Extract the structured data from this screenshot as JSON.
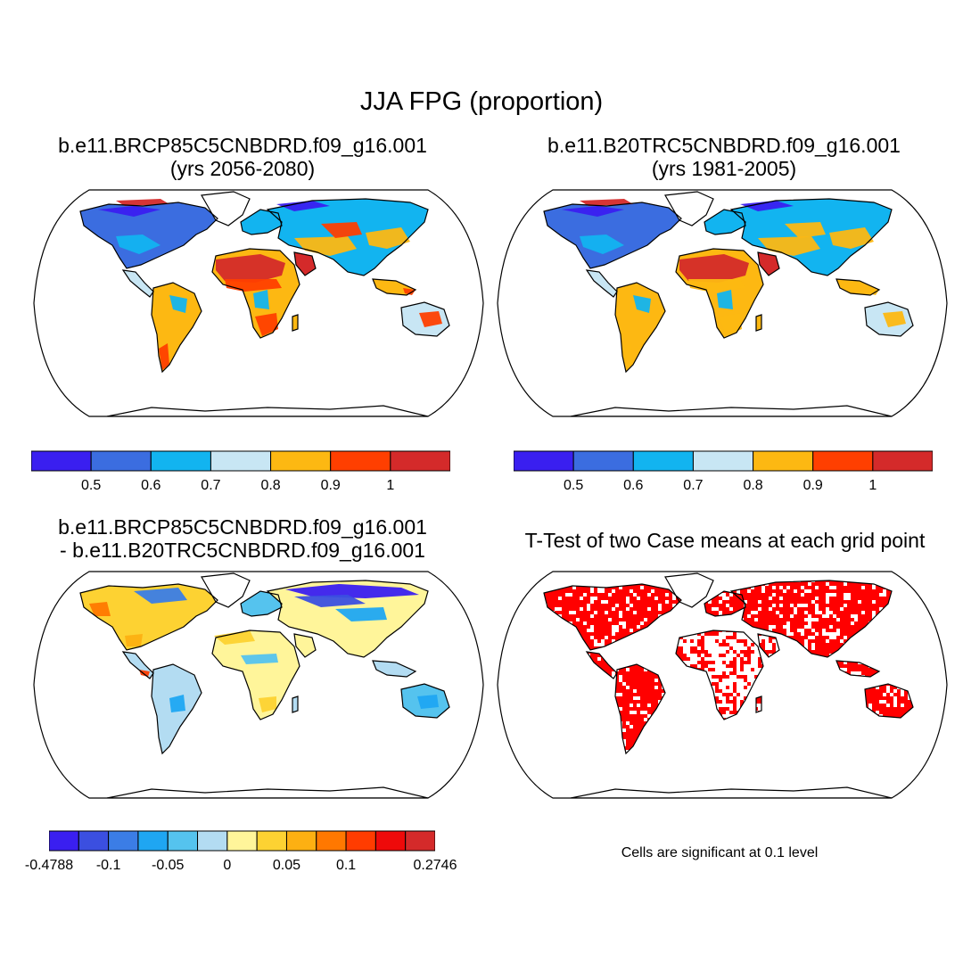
{
  "figure": {
    "title": "JJA FPG (proportion)"
  },
  "panels": [
    {
      "id": "future",
      "title_line1": "b.e11.BRCP85C5CNBDRD.f09_g16.001",
      "title_line2": "(yrs 2056-2080)"
    },
    {
      "id": "historical",
      "title_line1": "b.e11.B20TRC5CNBDRD.f09_g16.001",
      "title_line2": "(yrs 1981-2005)"
    },
    {
      "id": "difference",
      "title_line1": "b.e11.BRCP85C5CNBDRD.f09_g16.001",
      "title_line2": "- b.e11.B20TRC5CNBDRD.f09_g16.001"
    },
    {
      "id": "ttest",
      "title_line1": "T-Test of two Case means at each grid point",
      "note": "Cells are significant at 0.1 level"
    }
  ],
  "colorbars": {
    "absolute": {
      "colors": [
        "#3a1ff0",
        "#3b6de0",
        "#12b4f0",
        "#c8e6f4",
        "#fdb812",
        "#ff3f00",
        "#d42a2a"
      ],
      "labels": [
        "0.5",
        "0.6",
        "0.7",
        "0.8",
        "0.9",
        "1"
      ]
    },
    "difference": {
      "colors": [
        "#3a1ff0",
        "#3b4fe0",
        "#3b7de6",
        "#1fa6f2",
        "#55c3ee",
        "#b3dcf2",
        "#fff59a",
        "#fdd232",
        "#fdb012",
        "#ff7800",
        "#ff3c00",
        "#ee0a0a",
        "#d42a2a"
      ],
      "labels": [
        "-0.4788",
        "-0.1",
        "-0.05",
        "0",
        "0.05",
        "0.1",
        "0.2746"
      ]
    }
  },
  "significance_color": "#ff0000"
}
